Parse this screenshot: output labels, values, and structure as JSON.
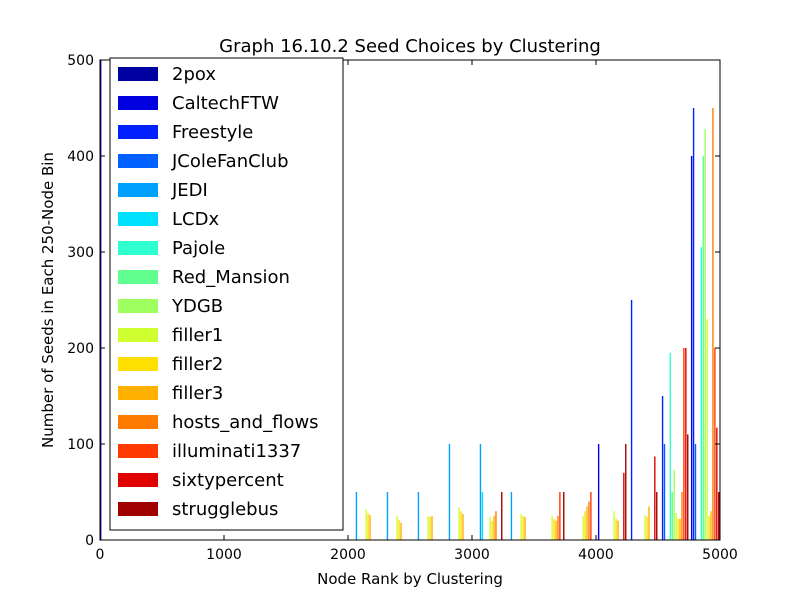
{
  "chart_data": {
    "type": "bar",
    "title": "Graph 16.10.2 Seed Choices by Clustering",
    "xlabel": "Node Rank by Clustering",
    "ylabel": "Number of Seeds in Each 250-Node Bin",
    "xlim": [
      0,
      5000
    ],
    "ylim": [
      0,
      500
    ],
    "xticks": [
      "0",
      "1000",
      "2000",
      "3000",
      "4000",
      "5000"
    ],
    "yticks": [
      "0",
      "100",
      "200",
      "300",
      "400",
      "500"
    ],
    "bin_width": 250,
    "legend_position": "upper-left",
    "series": [
      {
        "name": "2pox",
        "color": "#0000a0",
        "bars": [
          {
            "x": 0,
            "y": 500
          }
        ]
      },
      {
        "name": "CaltechFTW",
        "color": "#0000e0",
        "bars": [
          {
            "x": 4000,
            "y": 100
          },
          {
            "x": 4750,
            "y": 400
          }
        ]
      },
      {
        "name": "Freestyle",
        "color": "#0020ff",
        "bars": [
          {
            "x": 4250,
            "y": 250
          },
          {
            "x": 4500,
            "y": 150
          },
          {
            "x": 4750,
            "y": 450
          }
        ]
      },
      {
        "name": "JColeFanClub",
        "color": "#0060ff",
        "bars": [
          {
            "x": 4500,
            "y": 100
          },
          {
            "x": 4750,
            "y": 100
          }
        ]
      },
      {
        "name": "JEDI",
        "color": "#00a0ff",
        "bars": [
          {
            "x": 2000,
            "y": 50
          },
          {
            "x": 2250,
            "y": 50
          },
          {
            "x": 2500,
            "y": 50
          },
          {
            "x": 2750,
            "y": 100
          },
          {
            "x": 3000,
            "y": 100
          },
          {
            "x": 3250,
            "y": 50
          }
        ]
      },
      {
        "name": "LCDx",
        "color": "#00e0ff",
        "bars": [
          {
            "x": 3000,
            "y": 50
          }
        ]
      },
      {
        "name": "Pajole",
        "color": "#30ffd0",
        "bars": [
          {
            "x": 4500,
            "y": 195
          },
          {
            "x": 4750,
            "y": 305
          }
        ]
      },
      {
        "name": "Red_Mansion",
        "color": "#60ff90",
        "bars": [
          {
            "x": 4500,
            "y": 50
          },
          {
            "x": 4750,
            "y": 400
          }
        ]
      },
      {
        "name": "YDGB",
        "color": "#a0ff60",
        "bars": [
          {
            "x": 4500,
            "y": 73
          },
          {
            "x": 4750,
            "y": 428
          }
        ]
      },
      {
        "name": "filler1",
        "color": "#d0ff30",
        "bars": [
          {
            "x": 2000,
            "y": 32
          },
          {
            "x": 2250,
            "y": 25
          },
          {
            "x": 2500,
            "y": 25
          },
          {
            "x": 2750,
            "y": 34
          },
          {
            "x": 3000,
            "y": 24
          },
          {
            "x": 3250,
            "y": 27
          },
          {
            "x": 3500,
            "y": 25
          },
          {
            "x": 3750,
            "y": 25
          },
          {
            "x": 4000,
            "y": 30
          },
          {
            "x": 4250,
            "y": 26
          },
          {
            "x": 4500,
            "y": 28
          },
          {
            "x": 4750,
            "y": 230
          }
        ]
      },
      {
        "name": "filler2",
        "color": "#ffe000",
        "bars": [
          {
            "x": 2000,
            "y": 28
          },
          {
            "x": 2250,
            "y": 21
          },
          {
            "x": 2500,
            "y": 24
          },
          {
            "x": 2750,
            "y": 30
          },
          {
            "x": 3000,
            "y": 20
          },
          {
            "x": 3250,
            "y": 25
          },
          {
            "x": 3500,
            "y": 22
          },
          {
            "x": 3750,
            "y": 30
          },
          {
            "x": 4000,
            "y": 22
          },
          {
            "x": 4250,
            "y": 24
          },
          {
            "x": 4500,
            "y": 22
          },
          {
            "x": 4750,
            "y": 25
          }
        ]
      },
      {
        "name": "filler3",
        "color": "#ffb000",
        "bars": [
          {
            "x": 2000,
            "y": 26
          },
          {
            "x": 2250,
            "y": 18
          },
          {
            "x": 2500,
            "y": 25
          },
          {
            "x": 2750,
            "y": 27
          },
          {
            "x": 3000,
            "y": 25
          },
          {
            "x": 3250,
            "y": 24
          },
          {
            "x": 3500,
            "y": 20
          },
          {
            "x": 3750,
            "y": 35
          },
          {
            "x": 4000,
            "y": 20
          },
          {
            "x": 4250,
            "y": 35
          },
          {
            "x": 4500,
            "y": 22
          },
          {
            "x": 4750,
            "y": 30
          }
        ]
      },
      {
        "name": "hosts_and_flows",
        "color": "#ff7a00",
        "bars": [
          {
            "x": 3000,
            "y": 30
          },
          {
            "x": 3500,
            "y": 25
          },
          {
            "x": 3750,
            "y": 40
          },
          {
            "x": 4500,
            "y": 50
          },
          {
            "x": 4750,
            "y": 450
          }
        ]
      },
      {
        "name": "illuminati1337",
        "color": "#ff3a00",
        "bars": [
          {
            "x": 3500,
            "y": 50
          },
          {
            "x": 3750,
            "y": 50
          },
          {
            "x": 4500,
            "y": 200
          },
          {
            "x": 4750,
            "y": 200
          }
        ]
      },
      {
        "name": "sixtypercent",
        "color": "#e00000",
        "bars": [
          {
            "x": 4000,
            "y": 70
          },
          {
            "x": 4250,
            "y": 87
          },
          {
            "x": 4500,
            "y": 200
          },
          {
            "x": 4750,
            "y": 117
          }
        ]
      },
      {
        "name": "strugglebus",
        "color": "#a00000",
        "bars": [
          {
            "x": 3000,
            "y": 50
          },
          {
            "x": 3500,
            "y": 50
          },
          {
            "x": 4000,
            "y": 100
          },
          {
            "x": 4250,
            "y": 50
          },
          {
            "x": 4500,
            "y": 110
          },
          {
            "x": 4750,
            "y": 50
          }
        ]
      }
    ]
  }
}
